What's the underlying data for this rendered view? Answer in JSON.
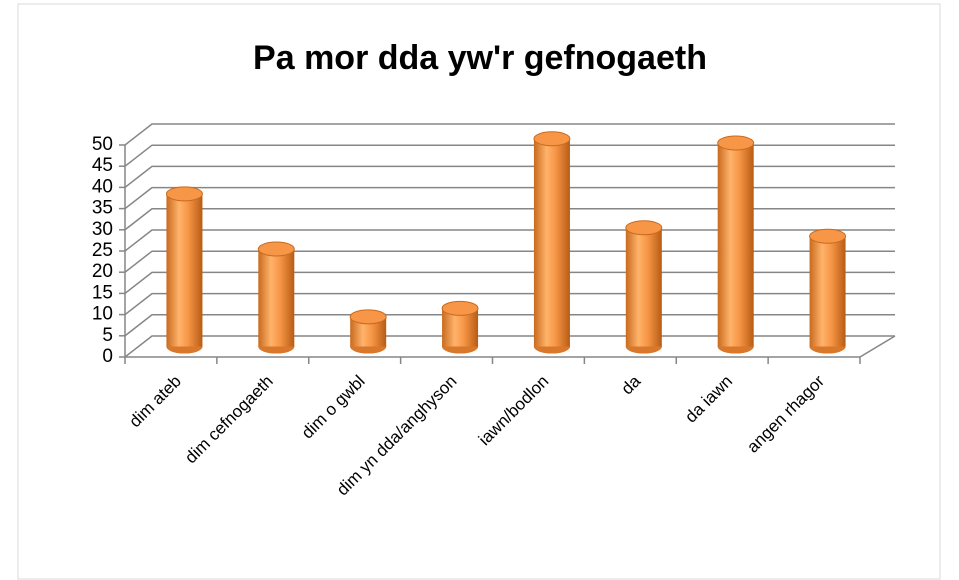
{
  "chart_data": {
    "type": "bar",
    "title": "Pa mor dda yw'r gefnogaeth",
    "categories": [
      "dim ateb",
      "dim cefnogaeth",
      "dim o gwbl",
      "dim yn dda/anghyson",
      "iawn/bodlon",
      "da",
      "da iawn",
      "angen rhagor"
    ],
    "values": [
      36,
      23,
      7,
      9,
      49,
      28,
      48,
      26
    ],
    "color": "#f79646",
    "ylim": [
      0,
      50
    ],
    "yticks": [
      0,
      5,
      10,
      15,
      20,
      25,
      30,
      35,
      40,
      45,
      50
    ],
    "grid": true
  }
}
